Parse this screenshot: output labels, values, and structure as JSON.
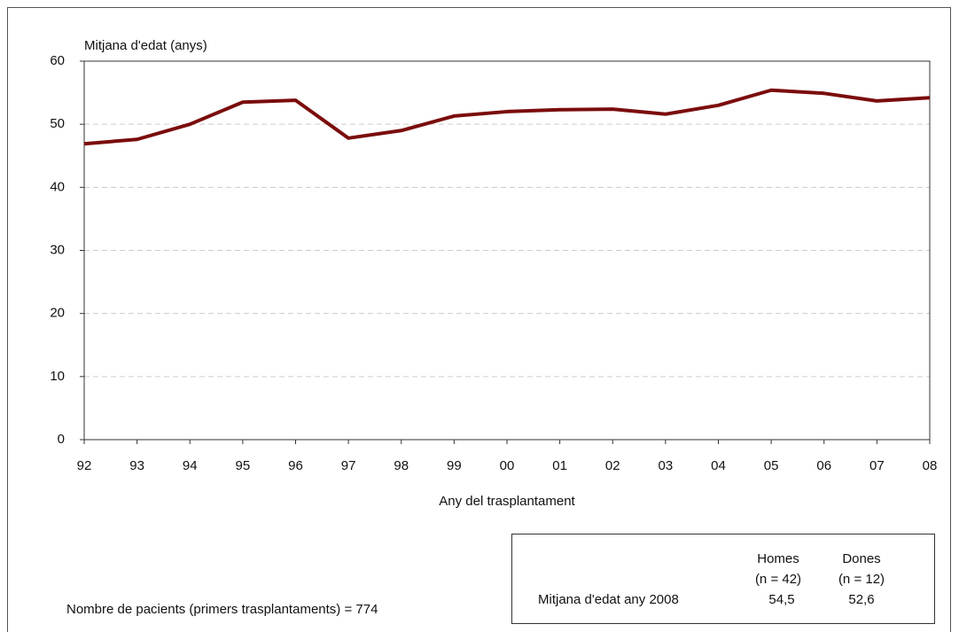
{
  "chart_data": {
    "type": "line",
    "y_label": "Mitjana d'edat (anys)",
    "x_label": "Any del trasplantament",
    "categories": [
      "92",
      "93",
      "94",
      "95",
      "96",
      "97",
      "98",
      "99",
      "00",
      "01",
      "02",
      "03",
      "04",
      "05",
      "06",
      "07",
      "08"
    ],
    "values": [
      46.9,
      47.6,
      50.0,
      53.5,
      53.8,
      47.8,
      49.0,
      51.3,
      52.0,
      52.3,
      52.4,
      51.6,
      53.0,
      55.4,
      54.9,
      53.7,
      54.2
    ],
    "color": "#7b0c0c",
    "ylim": [
      0,
      60
    ],
    "yticks": [
      0,
      10,
      20,
      30,
      40,
      50,
      60
    ],
    "grid": true
  },
  "note": "Nombre de pacients (primers trasplantaments) = 774",
  "table": {
    "header": [
      [
        "Homes",
        "(n = 42)"
      ],
      [
        "Dones",
        "(n = 12)"
      ]
    ],
    "rows": [
      [
        "Mitjana d'edat any 2008",
        "54,5",
        "52,6"
      ]
    ]
  }
}
